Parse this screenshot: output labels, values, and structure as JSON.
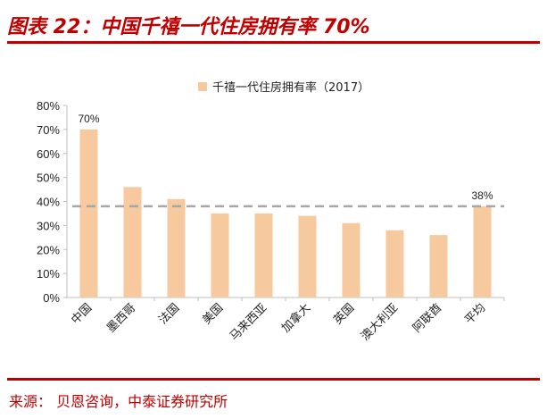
{
  "header": {
    "title": "图表 22：中国千禧一代住房拥有率 70%"
  },
  "footer": {
    "source": "来源：  贝恩咨询，中泰证券研究所"
  },
  "colors": {
    "bar": "#f7c99e",
    "dashed_line": "#a6a6a6",
    "title": "#c00000",
    "axis": "#bfbfbf"
  },
  "chart_data": {
    "type": "bar",
    "legend": {
      "label": "千禧一代住房拥有率（2017）",
      "position": "top-center"
    },
    "categories": [
      "中国",
      "墨西哥",
      "法国",
      "美国",
      "马来西亚",
      "加拿大",
      "英国",
      "澳大利亚",
      "阿联酋",
      "平均"
    ],
    "values": [
      70,
      46,
      41,
      35,
      35,
      34,
      31,
      28,
      26,
      38
    ],
    "ylim": [
      0,
      80
    ],
    "yticks": [
      "0%",
      "10%",
      "20%",
      "30%",
      "40%",
      "50%",
      "60%",
      "70%",
      "80%"
    ],
    "data_labels": [
      {
        "category": "中国",
        "text": "70%"
      },
      {
        "category": "平均",
        "text": "38%"
      }
    ],
    "reference_line": {
      "value": 38,
      "style": "dashed"
    },
    "grid": false
  }
}
